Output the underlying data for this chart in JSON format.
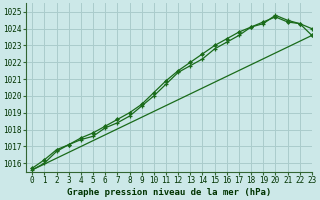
{
  "title": "Graphe pression niveau de la mer (hPa)",
  "bg_color": "#cce8e8",
  "grid_color": "#aacccc",
  "line_color": "#1a6b1a",
  "marker_color": "#1a6b1a",
  "xlim": [
    -0.5,
    23
  ],
  "ylim": [
    1015.5,
    1025.5
  ],
  "yticks": [
    1016,
    1017,
    1018,
    1019,
    1020,
    1021,
    1022,
    1023,
    1024,
    1025
  ],
  "xticks": [
    0,
    1,
    2,
    3,
    4,
    5,
    6,
    7,
    8,
    9,
    10,
    11,
    12,
    13,
    14,
    15,
    16,
    17,
    18,
    19,
    20,
    21,
    22,
    23
  ],
  "line1_x": [
    0,
    1,
    2,
    3,
    4,
    5,
    6,
    7,
    8,
    9,
    10,
    11,
    12,
    13,
    14,
    15,
    16,
    17,
    18,
    19,
    20,
    21,
    22,
    23
  ],
  "line1_y": [
    1015.6,
    1016.0,
    1016.7,
    1017.1,
    1017.4,
    1017.6,
    1018.1,
    1018.4,
    1018.8,
    1019.4,
    1020.0,
    1020.7,
    1021.4,
    1021.8,
    1022.2,
    1022.8,
    1023.2,
    1023.6,
    1024.1,
    1024.3,
    1024.8,
    1024.5,
    1024.3,
    1024.0
  ],
  "line2_x": [
    0,
    1,
    2,
    3,
    4,
    5,
    6,
    7,
    8,
    9,
    10,
    11,
    12,
    13,
    14,
    15,
    16,
    17,
    18,
    19,
    20,
    21,
    22,
    23
  ],
  "line2_y": [
    1015.7,
    1016.2,
    1016.8,
    1017.1,
    1017.5,
    1017.8,
    1018.2,
    1018.6,
    1019.0,
    1019.5,
    1020.2,
    1020.9,
    1021.5,
    1022.0,
    1022.5,
    1023.0,
    1023.4,
    1023.8,
    1024.1,
    1024.4,
    1024.7,
    1024.4,
    1024.3,
    1023.6
  ],
  "line3_x": [
    0,
    23
  ],
  "line3_y": [
    1015.6,
    1023.6
  ],
  "tick_fontsize": 5.5,
  "title_fontsize": 6.5
}
